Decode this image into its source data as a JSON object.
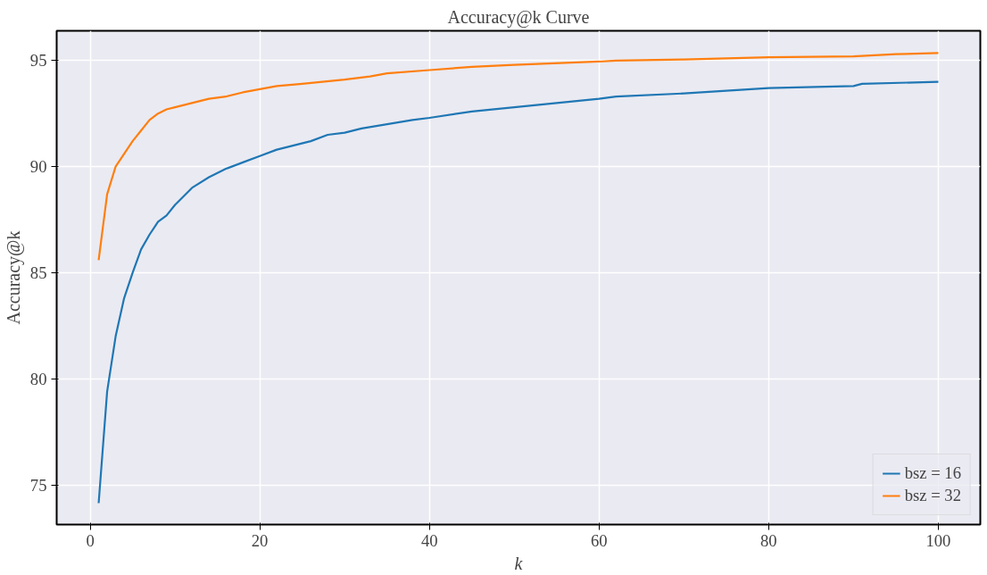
{
  "chart_data": {
    "type": "line",
    "title": "Accuracy@k Curve",
    "xlabel": "k",
    "ylabel": "Accuracy@k",
    "xlim": [
      -3.95,
      104.95
    ],
    "ylim": [
      73.14,
      96.4
    ],
    "xticks": [
      0,
      20,
      40,
      60,
      80,
      100
    ],
    "yticks": [
      75,
      80,
      85,
      90,
      95
    ],
    "grid": true,
    "legend": "bottom right",
    "line_style": "solid",
    "series": [
      {
        "name": "bsz = 16",
        "color": "#1f77b4",
        "x": [
          1,
          2,
          3,
          4,
          5,
          6,
          7,
          8,
          9,
          10,
          12,
          14,
          16,
          18,
          20,
          22,
          24,
          26,
          28,
          30,
          32,
          35,
          38,
          40,
          45,
          50,
          55,
          60,
          62,
          70,
          80,
          90,
          91,
          100
        ],
        "values": [
          74.15,
          79.4,
          82.0,
          83.8,
          85.0,
          86.1,
          86.8,
          87.4,
          87.7,
          88.2,
          89.0,
          89.5,
          89.9,
          90.2,
          90.5,
          90.8,
          91.0,
          91.2,
          91.5,
          91.6,
          91.8,
          92.0,
          92.2,
          92.3,
          92.6,
          92.8,
          93.0,
          93.2,
          93.3,
          93.45,
          93.7,
          93.8,
          93.9,
          94.0
        ]
      },
      {
        "name": "bsz = 32",
        "color": "#ff7f0e",
        "x": [
          1,
          2,
          3,
          4,
          5,
          6,
          7,
          8,
          9,
          10,
          12,
          14,
          16,
          18,
          20,
          22,
          25,
          30,
          33,
          35,
          40,
          45,
          50,
          60,
          62,
          70,
          80,
          90,
          95,
          100
        ],
        "values": [
          85.6,
          88.7,
          90.0,
          90.6,
          91.2,
          91.7,
          92.2,
          92.5,
          92.7,
          92.8,
          93.0,
          93.2,
          93.3,
          93.5,
          93.65,
          93.8,
          93.9,
          94.1,
          94.25,
          94.4,
          94.55,
          94.7,
          94.8,
          94.95,
          95.0,
          95.05,
          95.15,
          95.2,
          95.3,
          95.35
        ]
      }
    ]
  }
}
